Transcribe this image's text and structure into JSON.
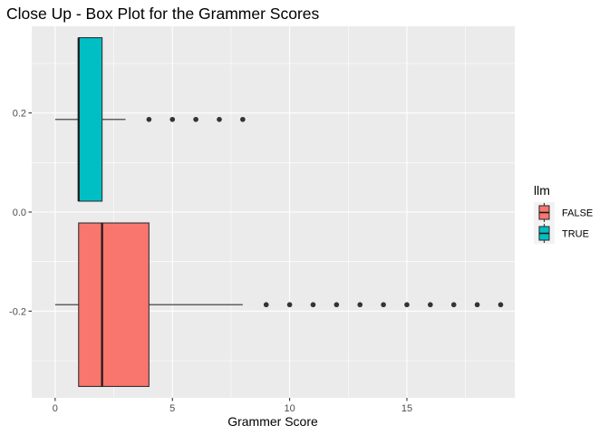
{
  "chart_data": {
    "type": "box",
    "title": "Close Up - Box Plot for the Grammer Scores",
    "xlabel": "Grammer Score",
    "ylabel": "",
    "orientation": "horizontal",
    "xlim": [
      -1,
      19.6
    ],
    "ylim": [
      -0.375,
      0.375
    ],
    "x_ticks": [
      0,
      5,
      10,
      15
    ],
    "x_tick_labels": [
      "0",
      "5",
      "10",
      "15"
    ],
    "y_ticks": [
      -0.2,
      0.0,
      0.2
    ],
    "y_tick_labels": [
      "-0.2",
      "0.0",
      "0.2"
    ],
    "grid": true,
    "legend": {
      "title": "llm",
      "position": "right",
      "entries": [
        "FALSE",
        "TRUE"
      ]
    },
    "series": [
      {
        "name": "FALSE",
        "color": "#F8766D",
        "y_center": -0.187,
        "y_halfwidth": 0.165,
        "whisker_low": 0,
        "q1": 1,
        "median": 2,
        "q3": 4,
        "whisker_high": 8,
        "outliers": [
          9,
          10,
          11,
          12,
          13,
          14,
          15,
          16,
          17,
          18,
          19
        ]
      },
      {
        "name": "TRUE",
        "color": "#00BFC4",
        "y_center": 0.187,
        "y_halfwidth": 0.165,
        "whisker_low": 0,
        "q1": 1,
        "median": 1,
        "q3": 2,
        "whisker_high": 3,
        "outliers": [
          4,
          5,
          6,
          7,
          8
        ]
      }
    ]
  }
}
